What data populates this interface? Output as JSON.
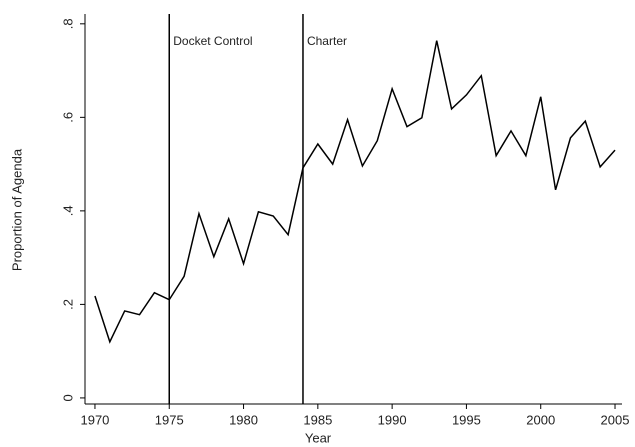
{
  "chart_data": {
    "type": "line",
    "xlabel": "Year",
    "ylabel": "Proportion of Agenda",
    "x": [
      1970,
      1971,
      1972,
      1973,
      1974,
      1975,
      1976,
      1977,
      1978,
      1979,
      1980,
      1981,
      1982,
      1983,
      1984,
      1985,
      1986,
      1987,
      1988,
      1989,
      1990,
      1991,
      1992,
      1993,
      1994,
      1995,
      1996,
      1997,
      1998,
      1999,
      2000,
      2001,
      2002,
      2003,
      2004,
      2005
    ],
    "values": [
      0.218,
      0.12,
      0.186,
      0.178,
      0.225,
      0.21,
      0.26,
      0.394,
      0.302,
      0.383,
      0.287,
      0.398,
      0.389,
      0.349,
      0.492,
      0.543,
      0.5,
      0.595,
      0.496,
      0.55,
      0.661,
      0.58,
      0.599,
      0.764,
      0.618,
      0.648,
      0.689,
      0.518,
      0.571,
      0.518,
      0.644,
      0.445,
      0.556,
      0.592,
      0.494,
      0.53
    ],
    "color": "#000000",
    "xlim": [
      1969.33,
      2005.47
    ],
    "ylim": [
      -0.013,
      0.821
    ],
    "xticks": [
      1970,
      1975,
      1980,
      1985,
      1990,
      1995,
      2000,
      2005
    ],
    "yticks": [
      0,
      {
        "value": 0.2,
        "label": ".2"
      },
      {
        "value": 0.4,
        "label": ".4"
      },
      {
        "value": 0.6,
        "label": ".6"
      },
      {
        "value": 0.8,
        "label": ".8"
      }
    ],
    "annotations": [
      {
        "label": "Docket Control",
        "x": 1975
      },
      {
        "label": "Charter",
        "x": 1984
      }
    ]
  }
}
